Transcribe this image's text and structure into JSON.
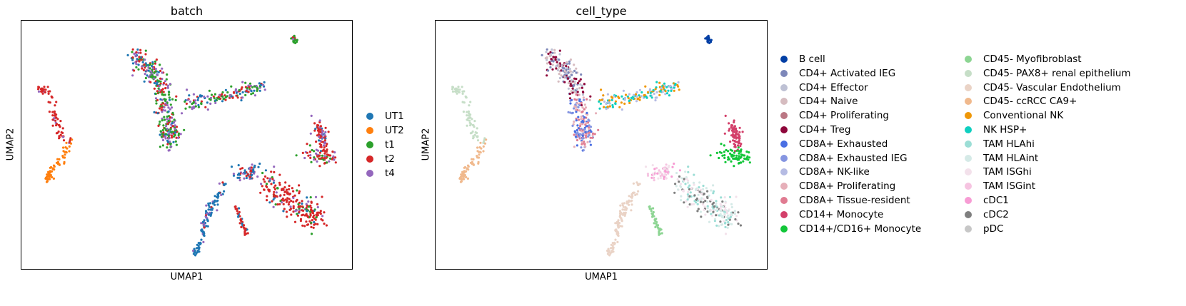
{
  "chart_data": [
    {
      "type": "scatter",
      "title": "batch",
      "xlabel": "UMAP1",
      "ylabel": "UMAP2",
      "grid": false,
      "legend_position": "right",
      "legend": [
        {
          "label": "UT1",
          "color": "#1f77b4"
        },
        {
          "label": "UT2",
          "color": "#ff7f0e"
        },
        {
          "label": "t1",
          "color": "#2ca02c"
        },
        {
          "label": "t2",
          "color": "#d62728"
        },
        {
          "label": "t4",
          "color": "#9467bd"
        }
      ]
    },
    {
      "type": "scatter",
      "title": "cell_type",
      "xlabel": "UMAP1",
      "ylabel": "UMAP2",
      "grid": false,
      "legend_position": "right",
      "legend": [
        {
          "label": "B cell",
          "color": "#023fa5"
        },
        {
          "label": "CD4+ Activated IEG",
          "color": "#7d87b9"
        },
        {
          "label": "CD4+ Effector",
          "color": "#bec1d4"
        },
        {
          "label": "CD4+ Naive",
          "color": "#d6bcc0"
        },
        {
          "label": "CD4+ Proliferating",
          "color": "#bb7784"
        },
        {
          "label": "CD4+ Treg",
          "color": "#8e063b"
        },
        {
          "label": "CD8A+ Exhausted",
          "color": "#4a6fe3"
        },
        {
          "label": "CD8A+ Exhausted IEG",
          "color": "#8595e1"
        },
        {
          "label": "CD8A+ NK-like",
          "color": "#b5bbe3"
        },
        {
          "label": "CD8A+ Proliferating",
          "color": "#e6afb9"
        },
        {
          "label": "CD8A+ Tissue-resident",
          "color": "#e07b91"
        },
        {
          "label": "CD14+ Monocyte",
          "color": "#d33f6a"
        },
        {
          "label": "CD14+/CD16+ Monocyte",
          "color": "#11c638"
        },
        {
          "label": "CD45- Myofibroblast",
          "color": "#8dd593"
        },
        {
          "label": "CD45- PAX8+ renal epithelium",
          "color": "#c6dec7"
        },
        {
          "label": "CD45- Vascular Endothelium",
          "color": "#ead3c6"
        },
        {
          "label": "CD45- ccRCC CA9+",
          "color": "#f0b98d"
        },
        {
          "label": "Conventional NK",
          "color": "#ef9708"
        },
        {
          "label": "NK HSP+",
          "color": "#0fcfc0"
        },
        {
          "label": "TAM HLAhi",
          "color": "#9cded6"
        },
        {
          "label": "TAM HLAint",
          "color": "#d5eae7"
        },
        {
          "label": "TAM ISGhi",
          "color": "#f3e1eb"
        },
        {
          "label": "TAM ISGint",
          "color": "#f6c4e1"
        },
        {
          "label": "cDC1",
          "color": "#f79cd4"
        },
        {
          "label": "cDC2",
          "color": "#7f7f7f"
        },
        {
          "label": "pDC",
          "color": "#c7c7c7"
        }
      ]
    }
  ]
}
